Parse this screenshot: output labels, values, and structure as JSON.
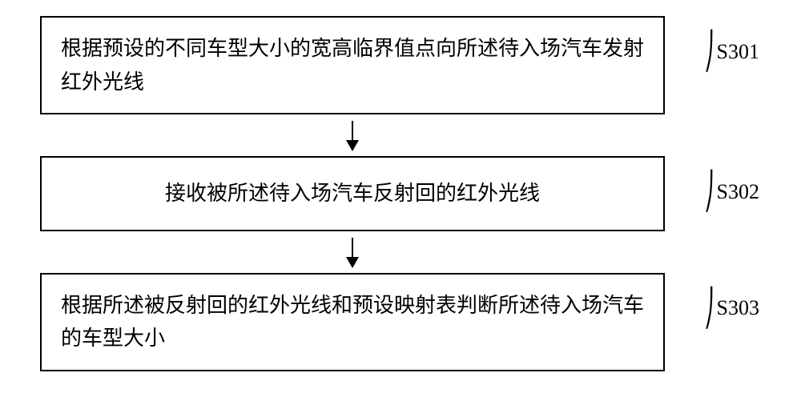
{
  "flowchart": {
    "type": "flowchart",
    "background_color": "#ffffff",
    "border_color": "#000000",
    "border_width": 2,
    "text_color": "#000000",
    "font_size": 26,
    "font_family": "SimSun",
    "arrow_color": "#000000",
    "steps": [
      {
        "label": "S301",
        "text": "根据预设的不同车型大小的宽高临界值点向所述待入场汽车发射红外光线"
      },
      {
        "label": "S302",
        "text": "接收被所述待入场汽车反射回的红外光线"
      },
      {
        "label": "S303",
        "text": "根据所述被反射回的红外光线和预设映射表判断所述待入场汽车的车型大小"
      }
    ]
  }
}
